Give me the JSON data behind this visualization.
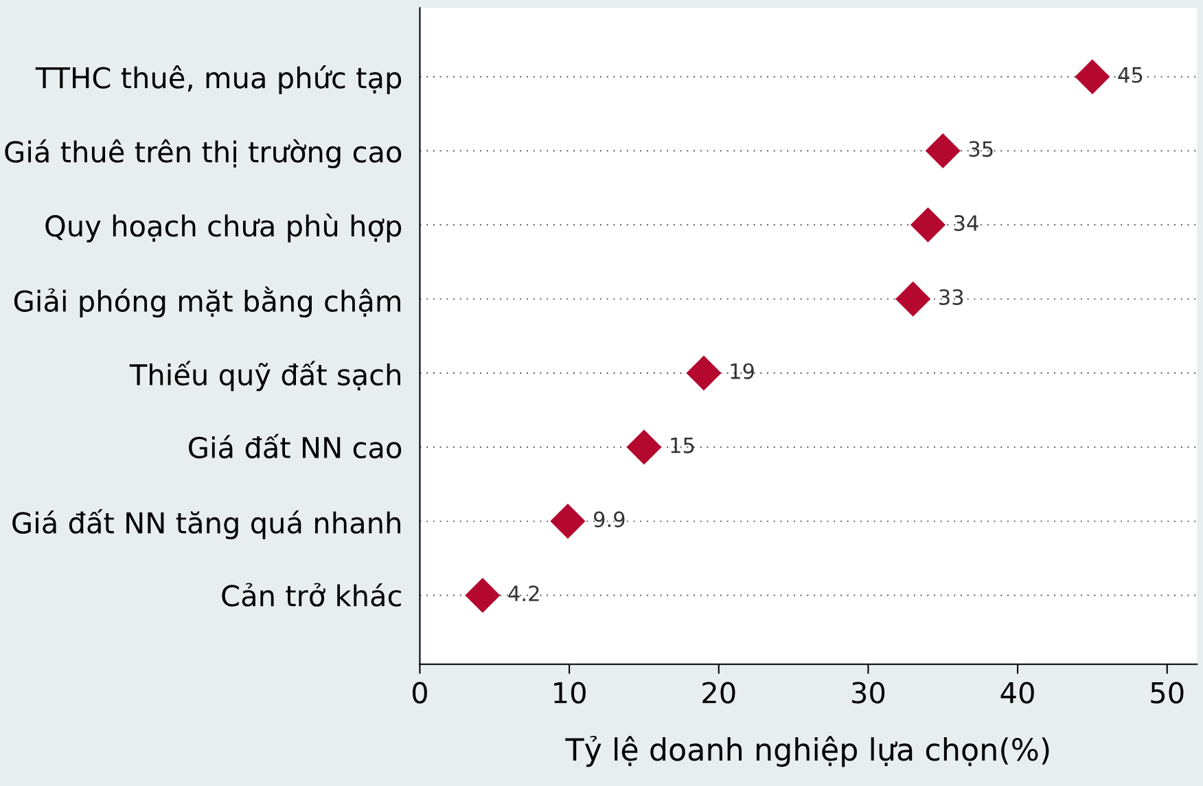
{
  "chart_data": {
    "type": "scatter",
    "orientation": "horizontal",
    "xlabel": "Tỷ lệ doanh nghiệp lựa chọn(%)",
    "categories": [
      "TTHC thuê, mua phức tạp",
      "Giá thuê trên thị trường cao",
      "Quy hoạch chưa phù hợp",
      "Giải phóng mặt bằng chậm",
      "Thiếu quỹ đất sạch",
      "Giá đất NN cao",
      "Giá đất NN tăng quá nhanh",
      "Cản trở khác"
    ],
    "values": [
      45,
      35,
      34,
      33,
      19,
      15,
      9.9,
      4.2
    ],
    "color": "#b5082f",
    "marker": "diamond",
    "data_labels": true,
    "grid": "y",
    "xlim": [
      0,
      52
    ],
    "xticks": [
      0,
      10,
      20,
      30,
      40,
      50
    ]
  }
}
